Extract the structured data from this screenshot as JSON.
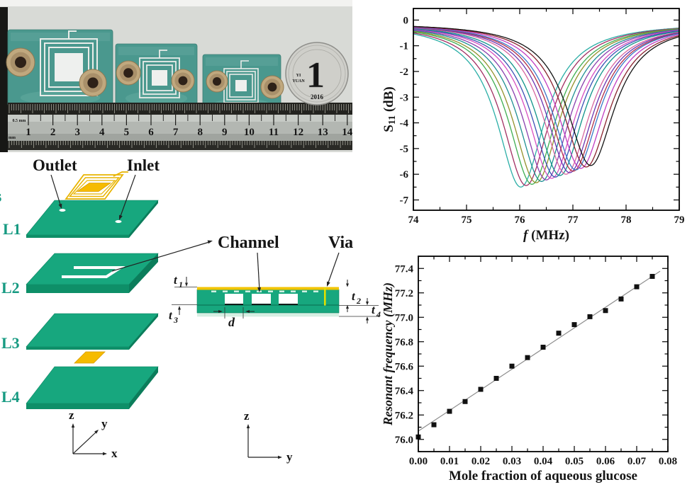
{
  "figure": {
    "background": "#ffffff"
  },
  "photo": {
    "background": "#d8dad6",
    "board_color": "#4a988e",
    "port_color": "#c0a87e",
    "ruler": {
      "numbers": [
        "1",
        "2",
        "3",
        "4",
        "5",
        "6",
        "7",
        "8",
        "9",
        "10",
        "11",
        "12",
        "13",
        "14"
      ],
      "label_top": "0.5 mm",
      "label_bottom": "mm"
    },
    "coin": {
      "value": "1",
      "text_line1": "YI",
      "text_line2": "YUAN",
      "year": "2016"
    }
  },
  "diagram": {
    "layer_color": "#17a77e",
    "layer_side_color": "#0e8f68",
    "layer_edge_color": "#0b8060",
    "gold_color": "#f2b705",
    "edge_fragment": "s",
    "labels": {
      "outlet": "Outlet",
      "inlet": "Inlet",
      "channel": "Channel",
      "via": "Via"
    },
    "layers": [
      "L1",
      "L2",
      "L3",
      "L4"
    ],
    "dims": {
      "t1": {
        "base": "t",
        "sub": "1"
      },
      "t2": {
        "base": "t",
        "sub": "2"
      },
      "t3": {
        "base": "t",
        "sub": "3"
      },
      "t4": {
        "base": "t",
        "sub": "4"
      },
      "d": "d"
    },
    "axes_iso": {
      "x": "x",
      "y": "y",
      "z": "z"
    },
    "axes_side": {
      "y": "y",
      "z": "z"
    }
  },
  "chart_data": [
    {
      "type": "line",
      "title": "",
      "xlabel_italic": "f",
      "xlabel_rest": " (MHz)",
      "ylabel": {
        "base": "S",
        "sub": "11",
        "rest": " (dB)"
      },
      "xlim": [
        74,
        79
      ],
      "ylim": [
        -7.4,
        0.45
      ],
      "xticks": [
        74,
        75,
        76,
        77,
        78,
        79
      ],
      "xtick_labels": [
        "74",
        "75",
        "76",
        "77",
        "78",
        "79"
      ],
      "yticks": [
        0,
        -1,
        -2,
        -3,
        -4,
        -5,
        -6,
        -7
      ],
      "ytick_labels": [
        "0",
        "-1",
        "-2",
        "-3",
        "-4",
        "-5",
        "-6",
        "-7"
      ],
      "x_minor_step": 0.5,
      "y_minor_step": 0.5,
      "grid": false,
      "legend": null,
      "model": "lorentzian_dip",
      "baseline_dB": -0.1,
      "half_width_MHz": 0.55,
      "series": [
        {
          "name": "curve-01",
          "f0": 76.02,
          "depth": 6.4,
          "color": "#2aaea6"
        },
        {
          "name": "curve-02",
          "f0": 76.12,
          "depth": 6.34,
          "color": "#a22f63"
        },
        {
          "name": "curve-03",
          "f0": 76.23,
          "depth": 6.29,
          "color": "#3fae52"
        },
        {
          "name": "curve-04",
          "f0": 76.31,
          "depth": 6.23,
          "color": "#93912c"
        },
        {
          "name": "curve-05",
          "f0": 76.41,
          "depth": 6.18,
          "color": "#1f8f93"
        },
        {
          "name": "curve-06",
          "f0": 76.5,
          "depth": 6.12,
          "color": "#8a3fae"
        },
        {
          "name": "curve-07",
          "f0": 76.6,
          "depth": 6.06,
          "color": "#d84fc0"
        },
        {
          "name": "curve-08",
          "f0": 76.67,
          "depth": 6.01,
          "color": "#3b52b5"
        },
        {
          "name": "curve-09",
          "f0": 76.755,
          "depth": 5.95,
          "color": "#11948a"
        },
        {
          "name": "curve-10",
          "f0": 76.87,
          "depth": 5.9,
          "color": "#d8679f"
        },
        {
          "name": "curve-11",
          "f0": 76.94,
          "depth": 5.84,
          "color": "#6a35b2"
        },
        {
          "name": "curve-12",
          "f0": 77.005,
          "depth": 5.78,
          "color": "#b03049"
        },
        {
          "name": "curve-13",
          "f0": 77.055,
          "depth": 5.73,
          "color": "#3a77c9"
        },
        {
          "name": "curve-14",
          "f0": 77.15,
          "depth": 5.67,
          "color": "#c13cc1"
        },
        {
          "name": "curve-15",
          "f0": 77.25,
          "depth": 5.62,
          "color": "#8a2430"
        },
        {
          "name": "curve-16",
          "f0": 77.335,
          "depth": 5.56,
          "color": "#141414"
        }
      ]
    },
    {
      "type": "scatter",
      "title": "",
      "xlabel": "Mole fraction of aqueous glucose",
      "ylabel": "Resonant frequency (MHz)",
      "xlim": [
        0,
        0.08
      ],
      "ylim": [
        75.9,
        77.5
      ],
      "xticks": [
        0,
        0.01,
        0.02,
        0.03,
        0.04,
        0.05,
        0.06,
        0.07,
        0.08
      ],
      "xtick_labels": [
        "0.00",
        "0.01",
        "0.02",
        "0.03",
        "0.04",
        "0.05",
        "0.06",
        "0.07",
        "0.08"
      ],
      "yticks": [
        76.0,
        76.2,
        76.4,
        76.6,
        76.8,
        77.0,
        77.2,
        77.4
      ],
      "ytick_labels": [
        "76.0",
        "76.2",
        "76.4",
        "76.6",
        "76.8",
        "77.0",
        "77.2",
        "77.4"
      ],
      "x_minor_step": 0.005,
      "y_minor_step": 0.1,
      "grid": false,
      "marker": "square",
      "marker_color": "#111111",
      "marker_size": 7,
      "x": [
        0.0,
        0.005,
        0.01,
        0.015,
        0.02,
        0.025,
        0.03,
        0.035,
        0.04,
        0.045,
        0.05,
        0.055,
        0.06,
        0.065,
        0.07,
        0.075
      ],
      "y": [
        76.02,
        76.12,
        76.23,
        76.31,
        76.41,
        76.5,
        76.6,
        76.67,
        76.755,
        76.87,
        76.94,
        77.005,
        77.055,
        77.15,
        77.25,
        77.335
      ],
      "fit_line": {
        "x_start": 0.0,
        "x_end": 0.0775,
        "intercept": 76.068,
        "slope": 16.9,
        "color": "#8c8c8c"
      }
    }
  ]
}
